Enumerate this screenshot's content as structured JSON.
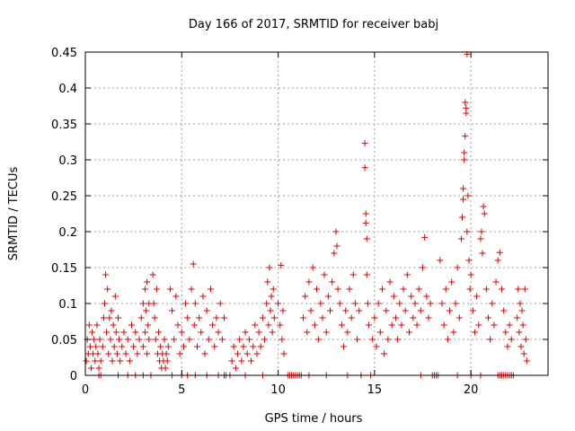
{
  "chart_data": {
    "type": "scatter",
    "title": "Day 166 of 2017, SRMTID for receiver babj",
    "xlabel": "GPS time / hours",
    "ylabel": "SRMTID / TECUs",
    "xlim": [
      0,
      24
    ],
    "ylim": [
      0,
      0.45
    ],
    "xticks": [
      0,
      5,
      10,
      15,
      20
    ],
    "yticks": [
      0,
      0.05,
      0.1,
      0.15,
      0.2,
      0.25,
      0.3,
      0.35,
      0.4,
      0.45
    ],
    "xtick_labels": [
      "0",
      "5",
      "10",
      "15",
      "20"
    ],
    "ytick_labels": [
      "0",
      "0.05",
      "0.1",
      "0.15",
      "0.2",
      "0.25",
      "0.3",
      "0.35",
      "0.4",
      "0.45"
    ],
    "grid": true,
    "marker": "+",
    "color": "#dd0000",
    "series": [
      {
        "name": "SRMTID",
        "points": [
          [
            0.05,
            0.02
          ],
          [
            0.1,
            0.05
          ],
          [
            0.15,
            0.03
          ],
          [
            0.2,
            0.07
          ],
          [
            0.25,
            0.04
          ],
          [
            0.3,
            0.01
          ],
          [
            0.35,
            0.06
          ],
          [
            0.4,
            0.03
          ],
          [
            0.45,
            0.05
          ],
          [
            0.5,
            0.02
          ],
          [
            0.55,
            0.04
          ],
          [
            0.6,
            0.07
          ],
          [
            0.65,
            0.03
          ],
          [
            0.7,
            0.01
          ],
          [
            0.75,
            0.05
          ],
          [
            0.8,
            0.02
          ],
          [
            0.9,
            0.04
          ],
          [
            0.95,
            0.08
          ],
          [
            1.0,
            0.1
          ],
          [
            1.05,
            0.14
          ],
          [
            1.1,
            0.06
          ],
          [
            1.15,
            0.12
          ],
          [
            1.2,
            0.03
          ],
          [
            1.25,
            0.08
          ],
          [
            1.3,
            0.05
          ],
          [
            1.35,
            0.09
          ],
          [
            1.4,
            0.02
          ],
          [
            1.45,
            0.07
          ],
          [
            1.5,
            0.04
          ],
          [
            1.55,
            0.11
          ],
          [
            1.6,
            0.06
          ],
          [
            1.65,
            0.03
          ],
          [
            1.7,
            0.08
          ],
          [
            1.75,
            0.05
          ],
          [
            1.8,
            0.02
          ],
          [
            1.9,
            0.04
          ],
          [
            2.0,
            0.06
          ],
          [
            2.1,
            0.03
          ],
          [
            2.2,
            0.05
          ],
          [
            2.3,
            0.02
          ],
          [
            2.4,
            0.07
          ],
          [
            2.5,
            0.04
          ],
          [
            2.6,
            0.06
          ],
          [
            2.7,
            0.03
          ],
          [
            2.8,
            0.05
          ],
          [
            2.9,
            0.08
          ],
          [
            3.0,
            0.04
          ],
          [
            3.1,
            0.06
          ],
          [
            3.2,
            0.03
          ],
          [
            3.3,
            0.05
          ],
          [
            3.0,
            0.1
          ],
          [
            3.1,
            0.12
          ],
          [
            3.15,
            0.09
          ],
          [
            3.2,
            0.13
          ],
          [
            3.25,
            0.07
          ],
          [
            3.3,
            0.1
          ],
          [
            3.5,
            0.14
          ],
          [
            3.55,
            0.1
          ],
          [
            3.6,
            0.08
          ],
          [
            3.65,
            0.05
          ],
          [
            3.7,
            0.12
          ],
          [
            3.75,
            0.03
          ],
          [
            3.8,
            0.06
          ],
          [
            3.85,
            0.02
          ],
          [
            3.9,
            0.04
          ],
          [
            3.95,
            0.01
          ],
          [
            4.0,
            0.03
          ],
          [
            4.05,
            0.02
          ],
          [
            4.1,
            0.05
          ],
          [
            4.15,
            0.01
          ],
          [
            4.2,
            0.03
          ],
          [
            4.25,
            0.02
          ],
          [
            4.3,
            0.04
          ],
          [
            4.4,
            0.12
          ],
          [
            4.5,
            0.09
          ],
          [
            4.6,
            0.05
          ],
          [
            4.7,
            0.11
          ],
          [
            4.8,
            0.07
          ],
          [
            4.9,
            0.03
          ],
          [
            5.0,
            0.06
          ],
          [
            5.1,
            0.04
          ],
          [
            5.2,
            0.1
          ],
          [
            5.3,
            0.08
          ],
          [
            5.4,
            0.05
          ],
          [
            5.5,
            0.12
          ],
          [
            5.6,
            0.155
          ],
          [
            5.65,
            0.07
          ],
          [
            5.7,
            0.1
          ],
          [
            5.8,
            0.04
          ],
          [
            5.9,
            0.08
          ],
          [
            6.0,
            0.06
          ],
          [
            6.1,
            0.11
          ],
          [
            6.2,
            0.03
          ],
          [
            6.3,
            0.09
          ],
          [
            6.4,
            0.05
          ],
          [
            6.5,
            0.12
          ],
          [
            6.6,
            0.07
          ],
          [
            6.7,
            0.04
          ],
          [
            6.8,
            0.08
          ],
          [
            6.9,
            0.06
          ],
          [
            7.0,
            0.1
          ],
          [
            7.1,
            0.05
          ],
          [
            7.2,
            0.08
          ],
          [
            7.6,
            0.02
          ],
          [
            7.7,
            0.04
          ],
          [
            7.8,
            0.01
          ],
          [
            7.9,
            0.03
          ],
          [
            8.0,
            0.05
          ],
          [
            8.1,
            0.02
          ],
          [
            8.2,
            0.04
          ],
          [
            8.3,
            0.06
          ],
          [
            8.4,
            0.03
          ],
          [
            8.5,
            0.05
          ],
          [
            8.6,
            0.02
          ],
          [
            8.7,
            0.04
          ],
          [
            8.8,
            0.07
          ],
          [
            8.9,
            0.03
          ],
          [
            9.0,
            0.06
          ],
          [
            9.1,
            0.04
          ],
          [
            9.2,
            0.08
          ],
          [
            9.3,
            0.05
          ],
          [
            9.4,
            0.1
          ],
          [
            9.45,
            0.13
          ],
          [
            9.5,
            0.07
          ],
          [
            9.55,
            0.15
          ],
          [
            9.6,
            0.09
          ],
          [
            9.65,
            0.11
          ],
          [
            9.7,
            0.06
          ],
          [
            9.75,
            0.12
          ],
          [
            9.8,
            0.08
          ],
          [
            10.0,
            0.1
          ],
          [
            10.1,
            0.07
          ],
          [
            10.15,
            0.153
          ],
          [
            10.2,
            0.05
          ],
          [
            10.25,
            0.09
          ],
          [
            10.3,
            0.03
          ],
          [
            11.3,
            0.08
          ],
          [
            11.4,
            0.11
          ],
          [
            11.5,
            0.06
          ],
          [
            11.6,
            0.13
          ],
          [
            11.7,
            0.09
          ],
          [
            11.8,
            0.15
          ],
          [
            11.9,
            0.07
          ],
          [
            12.0,
            0.12
          ],
          [
            12.1,
            0.05
          ],
          [
            12.2,
            0.1
          ],
          [
            12.3,
            0.08
          ],
          [
            12.4,
            0.14
          ],
          [
            12.5,
            0.06
          ],
          [
            12.6,
            0.11
          ],
          [
            12.7,
            0.09
          ],
          [
            12.8,
            0.13
          ],
          [
            12.9,
            0.17
          ],
          [
            13.0,
            0.2
          ],
          [
            13.05,
            0.18
          ],
          [
            13.1,
            0.12
          ],
          [
            13.2,
            0.1
          ],
          [
            13.3,
            0.07
          ],
          [
            13.4,
            0.04
          ],
          [
            13.5,
            0.09
          ],
          [
            13.6,
            0.06
          ],
          [
            13.7,
            0.12
          ],
          [
            13.8,
            0.08
          ],
          [
            13.9,
            0.14
          ],
          [
            14.0,
            0.1
          ],
          [
            14.1,
            0.05
          ],
          [
            14.2,
            0.09
          ],
          [
            14.5,
            0.323
          ],
          [
            14.5,
            0.289
          ],
          [
            14.55,
            0.225
          ],
          [
            14.55,
            0.212
          ],
          [
            14.6,
            0.19
          ],
          [
            14.6,
            0.14
          ],
          [
            14.65,
            0.1
          ],
          [
            14.7,
            0.07
          ],
          [
            14.9,
            0.05
          ],
          [
            15.0,
            0.08
          ],
          [
            15.1,
            0.04
          ],
          [
            15.2,
            0.1
          ],
          [
            15.3,
            0.06
          ],
          [
            15.4,
            0.12
          ],
          [
            15.5,
            0.03
          ],
          [
            15.6,
            0.09
          ],
          [
            15.7,
            0.05
          ],
          [
            15.8,
            0.13
          ],
          [
            15.9,
            0.07
          ],
          [
            16.0,
            0.11
          ],
          [
            16.1,
            0.08
          ],
          [
            16.2,
            0.05
          ],
          [
            16.3,
            0.1
          ],
          [
            16.4,
            0.07
          ],
          [
            16.5,
            0.12
          ],
          [
            16.6,
            0.09
          ],
          [
            16.7,
            0.14
          ],
          [
            16.8,
            0.06
          ],
          [
            16.9,
            0.11
          ],
          [
            17.0,
            0.08
          ],
          [
            17.1,
            0.1
          ],
          [
            17.2,
            0.07
          ],
          [
            17.3,
            0.12
          ],
          [
            17.4,
            0.09
          ],
          [
            17.5,
            0.15
          ],
          [
            17.6,
            0.192
          ],
          [
            17.7,
            0.11
          ],
          [
            17.8,
            0.08
          ],
          [
            17.9,
            0.1
          ],
          [
            18.4,
            0.16
          ],
          [
            18.5,
            0.1
          ],
          [
            18.6,
            0.07
          ],
          [
            18.7,
            0.12
          ],
          [
            18.8,
            0.05
          ],
          [
            18.9,
            0.09
          ],
          [
            19.0,
            0.13
          ],
          [
            19.1,
            0.06
          ],
          [
            19.2,
            0.1
          ],
          [
            19.3,
            0.15
          ],
          [
            19.4,
            0.08
          ],
          [
            19.5,
            0.19
          ],
          [
            19.55,
            0.22
          ],
          [
            19.6,
            0.26
          ],
          [
            19.6,
            0.245
          ],
          [
            19.65,
            0.31
          ],
          [
            19.65,
            0.3
          ],
          [
            19.7,
            0.333
          ],
          [
            19.7,
            0.38
          ],
          [
            19.75,
            0.372
          ],
          [
            19.75,
            0.365
          ],
          [
            19.8,
            0.447
          ],
          [
            19.8,
            0.2
          ],
          [
            19.85,
            0.25
          ],
          [
            19.9,
            0.16
          ],
          [
            19.95,
            0.12
          ],
          [
            20.0,
            0.14
          ],
          [
            20.1,
            0.09
          ],
          [
            20.2,
            0.06
          ],
          [
            20.3,
            0.11
          ],
          [
            20.4,
            0.07
          ],
          [
            20.5,
            0.19
          ],
          [
            20.55,
            0.2
          ],
          [
            20.6,
            0.17
          ],
          [
            20.65,
            0.235
          ],
          [
            20.7,
            0.225
          ],
          [
            20.8,
            0.12
          ],
          [
            20.9,
            0.08
          ],
          [
            21.0,
            0.05
          ],
          [
            21.1,
            0.1
          ],
          [
            21.2,
            0.07
          ],
          [
            21.3,
            0.13
          ],
          [
            21.4,
            0.16
          ],
          [
            21.5,
            0.171
          ],
          [
            21.6,
            0.12
          ],
          [
            21.7,
            0.09
          ],
          [
            21.8,
            0.06
          ],
          [
            21.9,
            0.04
          ],
          [
            22.0,
            0.07
          ],
          [
            22.1,
            0.05
          ],
          [
            22.4,
            0.08
          ],
          [
            22.45,
            0.12
          ],
          [
            22.5,
            0.06
          ],
          [
            22.55,
            0.1
          ],
          [
            22.6,
            0.04
          ],
          [
            22.65,
            0.09
          ],
          [
            22.7,
            0.07
          ],
          [
            22.75,
            0.03
          ],
          [
            22.8,
            0.12
          ],
          [
            22.85,
            0.05
          ],
          [
            22.9,
            0.02
          ],
          [
            0.7,
            0.0
          ],
          [
            0.8,
            0.0
          ],
          [
            1.7,
            0.0
          ],
          [
            2.2,
            0.0
          ],
          [
            2.6,
            0.0
          ],
          [
            3.0,
            0.0
          ],
          [
            3.4,
            0.0
          ],
          [
            4.5,
            0.0
          ],
          [
            5.0,
            0.0
          ],
          [
            5.3,
            0.0
          ],
          [
            5.7,
            0.0
          ],
          [
            6.3,
            0.0
          ],
          [
            6.9,
            0.0
          ],
          [
            7.2,
            0.0
          ],
          [
            7.3,
            0.0
          ],
          [
            7.5,
            0.0
          ],
          [
            8.3,
            0.0
          ],
          [
            9.2,
            0.0
          ],
          [
            10.5,
            0.0
          ],
          [
            10.6,
            0.0
          ],
          [
            10.7,
            0.0
          ],
          [
            10.8,
            0.0
          ],
          [
            10.9,
            0.0
          ],
          [
            11.0,
            0.0
          ],
          [
            11.1,
            0.0
          ],
          [
            11.2,
            0.0
          ],
          [
            11.6,
            0.0
          ],
          [
            12.5,
            0.0
          ],
          [
            13.6,
            0.0
          ],
          [
            14.3,
            0.0
          ],
          [
            14.8,
            0.0
          ],
          [
            17.4,
            0.0
          ],
          [
            18.0,
            0.0
          ],
          [
            18.1,
            0.0
          ],
          [
            18.2,
            0.0
          ],
          [
            18.3,
            0.0
          ],
          [
            19.3,
            0.0
          ],
          [
            20.0,
            0.0
          ],
          [
            20.5,
            0.0
          ],
          [
            21.4,
            0.0
          ],
          [
            21.5,
            0.0
          ],
          [
            21.6,
            0.0
          ],
          [
            21.7,
            0.0
          ],
          [
            21.8,
            0.0
          ],
          [
            21.9,
            0.0
          ],
          [
            22.0,
            0.0
          ],
          [
            22.1,
            0.0
          ],
          [
            22.2,
            0.0
          ]
        ]
      }
    ]
  }
}
